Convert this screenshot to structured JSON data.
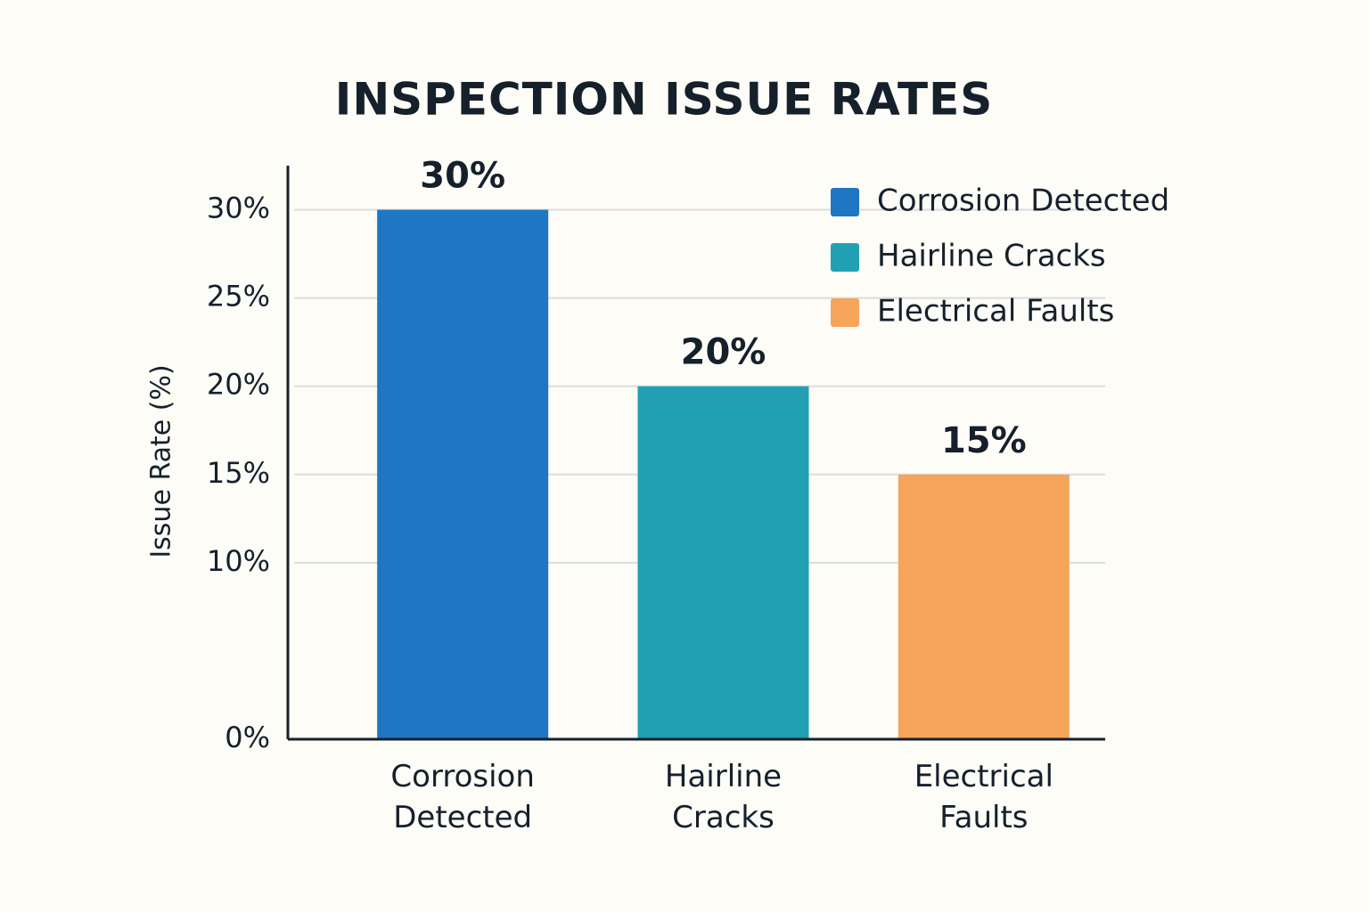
{
  "chart_data": {
    "type": "bar",
    "title": "INSPECTION ISSUE RATES",
    "y_label": "Issue Rate (%)",
    "categories": [
      "Corrosion Detected",
      "Hairline Cracks",
      "Electrical Faults"
    ],
    "values": [
      30,
      20,
      15
    ],
    "value_labels": [
      "30%",
      "20%",
      "15%"
    ],
    "colors": [
      "#1f76c2",
      "#22a0b3",
      "#f6a45a"
    ],
    "ylim": [
      0,
      32.5
    ],
    "yticks": [
      {
        "value": 0,
        "label": "0%"
      },
      {
        "value": 10,
        "label": "10%"
      },
      {
        "value": 15,
        "label": "15%"
      },
      {
        "value": 20,
        "label": "20%"
      },
      {
        "value": 25,
        "label": "25%"
      },
      {
        "value": 30,
        "label": "30%"
      }
    ],
    "grid": true,
    "legend": "upper right"
  }
}
